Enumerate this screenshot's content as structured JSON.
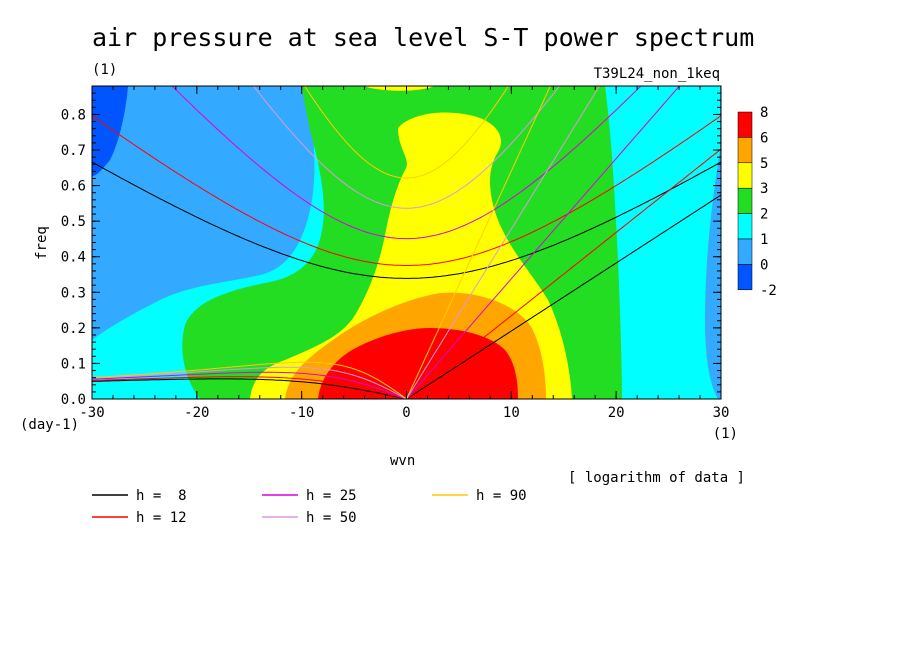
{
  "title": "air pressure at sea level S-T power spectrum",
  "subtitle_units": "(1)",
  "experiment": "T39L24_non_1keq",
  "note": "[ logarithm of data ]",
  "chart_data": {
    "type": "heatmap",
    "xlabel": "wvn",
    "ylabel": "freq",
    "x_units": "(1)",
    "y_units": "(day-1)",
    "xlim": [
      -30,
      30
    ],
    "ylim": [
      0,
      0.88
    ],
    "x_ticks": [
      "-30",
      "-20",
      "-10",
      "0",
      "10",
      "20",
      "30"
    ],
    "y_ticks": [
      "0.0",
      "0.1",
      "0.2",
      "0.3",
      "0.4",
      "0.5",
      "0.6",
      "0.7",
      "0.8"
    ],
    "colorbar": {
      "labels": [
        "8",
        "6",
        "5",
        "3",
        "2",
        "1",
        "0",
        "-2"
      ],
      "colors": [
        "#ff0000",
        "#ffa500",
        "#ffff00",
        "#22dd22",
        "#00ffff",
        "#33aaff",
        "#0055ff"
      ]
    },
    "levels": [
      {
        "value": 0,
        "color": "#33aaff"
      },
      {
        "value": 1,
        "color": "#00ffff"
      },
      {
        "value": 2,
        "color": "#22dd22"
      },
      {
        "value": 3,
        "color": "#ffff00"
      },
      {
        "value": 5,
        "color": "#ffa500"
      },
      {
        "value": 6,
        "color": "#ff0000"
      }
    ],
    "dispersion_curves": [
      {
        "label": "h =  8",
        "h": 8,
        "color": "#000000"
      },
      {
        "label": "h = 12",
        "h": 12,
        "color": "#ff0000"
      },
      {
        "label": "h = 25",
        "h": 25,
        "color": "#dd00dd"
      },
      {
        "label": "h = 50",
        "h": 50,
        "color": "#dd99dd"
      },
      {
        "label": "h = 90",
        "h": 90,
        "color": "#ffcc00"
      }
    ]
  }
}
